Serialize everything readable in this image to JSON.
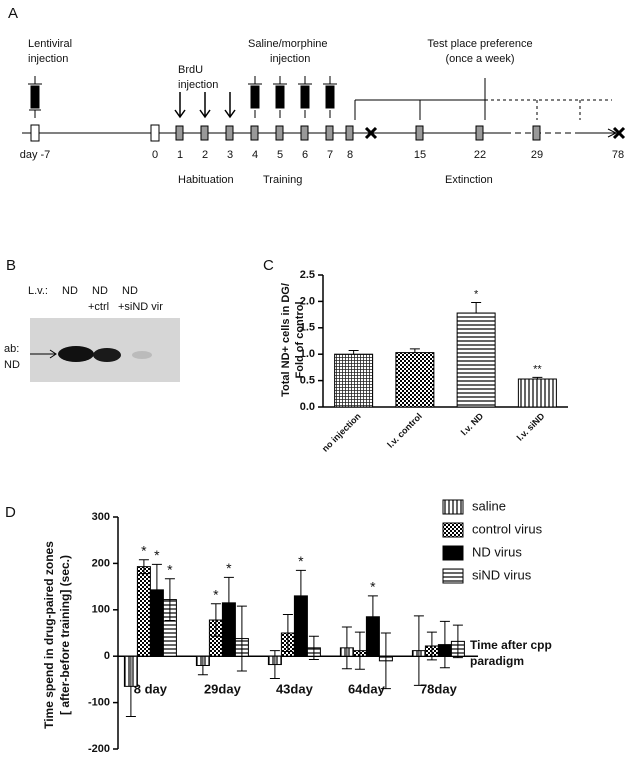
{
  "panel_a": {
    "label": "A",
    "lentiviral": [
      "Lentiviral",
      "injection"
    ],
    "brdu": [
      "BrdU",
      "injection"
    ],
    "saline": [
      "Saline/morphine",
      "injection"
    ],
    "test": [
      "Test place preference",
      "(once a week)"
    ],
    "days": [
      "day -7",
      "0",
      "1",
      "2",
      "3",
      "4",
      "5",
      "6",
      "7",
      "8",
      "15",
      "22",
      "29",
      "78"
    ],
    "phases": [
      "Habituation",
      "Training",
      "Extinction"
    ]
  },
  "panel_b": {
    "label": "B",
    "lv": "L.v.:",
    "lanes": [
      [
        "ND",
        ""
      ],
      [
        "ND",
        "+ctrl"
      ],
      [
        "ND",
        "+siND vir"
      ]
    ],
    "antibody": [
      "ab:",
      "ND"
    ]
  },
  "chart_data": [
    {
      "type": "bar",
      "panel": "C",
      "ylabel": [
        "Total ND+ cells in DG/",
        "Fold of control"
      ],
      "categories": [
        "no injection",
        "l.v. control",
        "l.v. ND",
        "l.v. siND"
      ],
      "values": [
        1.0,
        1.03,
        1.78,
        0.53
      ],
      "errors": [
        0.07,
        0.07,
        0.2,
        0.03
      ],
      "annotations": [
        null,
        null,
        "*",
        "**"
      ],
      "patterns": [
        "grid",
        "checker",
        "horizontal",
        "vertical"
      ],
      "ylim": [
        0,
        2.5
      ],
      "yticks": [
        {
          "value": 0,
          "label": "0.0"
        },
        {
          "value": 0.5,
          "label": "0.5"
        },
        {
          "value": 1,
          "label": "1.0"
        },
        {
          "value": 1.5,
          "label": "1.5"
        },
        {
          "value": 2,
          "label": "2.0"
        },
        {
          "value": 2.5,
          "label": "2.5"
        }
      ]
    },
    {
      "type": "grouped_bar",
      "panel": "D",
      "ylabel": [
        "Time spend in drug-paired zones",
        "[ after-before training] (sec.)"
      ],
      "xlabel": [
        "Time after cpp",
        "paradigm"
      ],
      "categories": [
        "8 day",
        "29day",
        "43day",
        "64day",
        "78day"
      ],
      "series": [
        {
          "name": "saline",
          "pattern": "vertical",
          "values": [
            -65,
            -20,
            -18,
            18,
            12
          ],
          "errors": [
            65,
            20,
            30,
            45,
            75
          ],
          "annotations": [
            null,
            null,
            null,
            null,
            null
          ]
        },
        {
          "name": "control virus",
          "pattern": "checker",
          "values": [
            193,
            78,
            50,
            12,
            22
          ],
          "errors": [
            15,
            35,
            40,
            40,
            30
          ],
          "annotations": [
            "*",
            "*",
            null,
            null,
            null
          ]
        },
        {
          "name": "ND virus",
          "pattern": "solid",
          "values": [
            143,
            115,
            130,
            85,
            25
          ],
          "errors": [
            55,
            55,
            55,
            45,
            50
          ],
          "annotations": [
            "*",
            "*",
            "*",
            "*",
            null
          ]
        },
        {
          "name": "siND virus",
          "pattern": "horizontal",
          "values": [
            122,
            38,
            18,
            -10,
            32
          ],
          "errors": [
            45,
            70,
            25,
            60,
            35
          ],
          "annotations": [
            "*",
            null,
            null,
            null,
            null
          ]
        }
      ],
      "ylim": [
        -200,
        300
      ],
      "yticks": [
        -200,
        -100,
        0,
        100,
        200,
        300
      ]
    }
  ]
}
